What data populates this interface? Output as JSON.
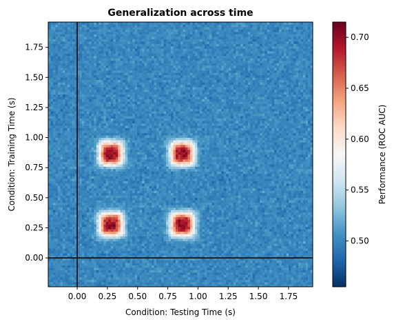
{
  "chart_data": {
    "type": "heatmap",
    "title": "Generalization across time",
    "xlabel": "Condition: Testing Time (s)",
    "ylabel": "Condition: Training Time (s)",
    "colorbar_label": "Performance (ROC AUC)",
    "colormap": "RdBu_r",
    "xlim": [
      -0.24,
      1.95
    ],
    "ylim": [
      -0.24,
      1.96
    ],
    "xticks": [
      0.0,
      0.25,
      0.5,
      0.75,
      1.0,
      1.25,
      1.5,
      1.75
    ],
    "xtick_labels": [
      "0.00",
      "0.25",
      "0.50",
      "0.75",
      "1.00",
      "1.25",
      "1.50",
      "1.75"
    ],
    "yticks": [
      0.0,
      0.25,
      0.5,
      0.75,
      1.0,
      1.25,
      1.5,
      1.75
    ],
    "ytick_labels": [
      "0.00",
      "0.25",
      "0.50",
      "0.75",
      "1.00",
      "1.25",
      "1.50",
      "1.75"
    ],
    "color_range": [
      0.455,
      0.715
    ],
    "colorbar_ticks": [
      0.5,
      0.55,
      0.6,
      0.65,
      0.7
    ],
    "colorbar_tick_labels": [
      "0.50",
      "0.55",
      "0.60",
      "0.65",
      "0.70"
    ],
    "baseline_value": 0.5,
    "peak_regions": [
      {
        "train_time": 0.28,
        "test_time": 0.28,
        "peak_auc": 0.71
      },
      {
        "train_time": 0.28,
        "test_time": 0.87,
        "peak_auc": 0.71
      },
      {
        "train_time": 0.87,
        "test_time": 0.28,
        "peak_auc": 0.71
      },
      {
        "train_time": 0.87,
        "test_time": 0.87,
        "peak_auc": 0.71
      }
    ],
    "reference_lines": {
      "x": 0.0,
      "y": 0.0
    },
    "grid": false
  }
}
